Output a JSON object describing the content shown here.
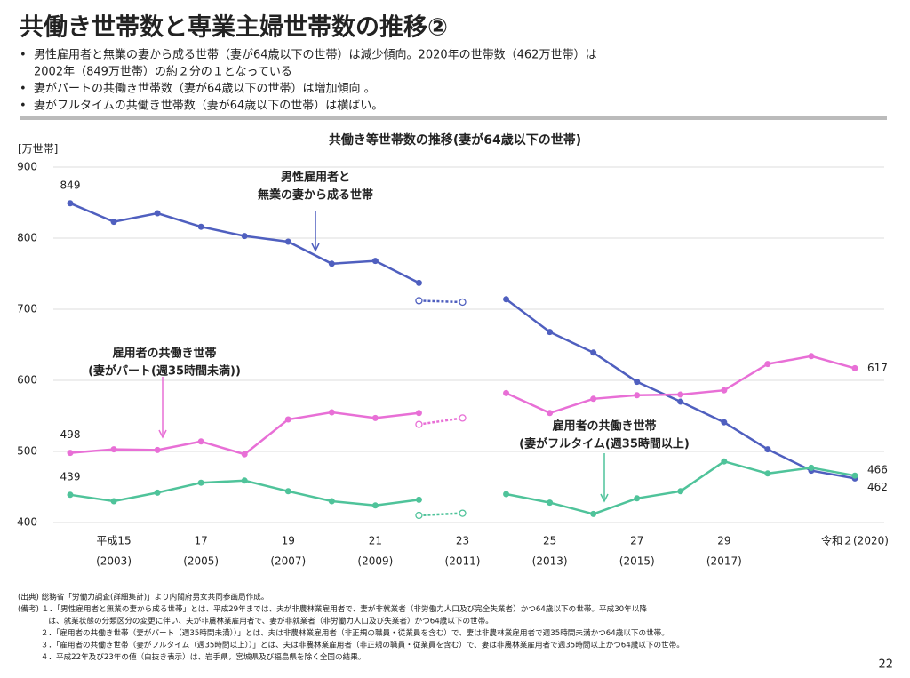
{
  "header": {
    "title": "共働き世帯数と専業主婦世帯数の推移②",
    "bullets": [
      [
        "男性雇用者と無業の妻から成る世帯（妻が64歳以下の世帯）は減少傾向。2020年の世帯数（462万世帯）は",
        "2002年（849万世帯）の約２分の１となっている"
      ],
      [
        "妻がパートの共働き世帯数（妻が64歳以下の世帯）は増加傾向 。"
      ],
      [
        "妻がフルタイムの共働き世帯数（妻が64歳以下の世帯）は横ばい。"
      ]
    ]
  },
  "chart_data": {
    "type": "line",
    "title": "共働き等世帯数の推移(妻が64歳以下の世帯)",
    "y_label": "[万世帯]",
    "categories": [
      null,
      "平成15",
      null,
      "17",
      null,
      "19",
      null,
      "21",
      null,
      "23",
      null,
      "25",
      null,
      "27",
      null,
      "29",
      null,
      null,
      "令和２"
    ],
    "category_years": [
      null,
      "(2003)",
      null,
      "(2005)",
      null,
      "(2007)",
      null,
      "(2009)",
      null,
      "(2011)",
      null,
      "(2013)",
      null,
      "(2015)",
      null,
      "(2017)",
      null,
      null,
      "(2020)"
    ],
    "ylim": [
      400,
      900
    ],
    "yticks": [
      400,
      500,
      600,
      700,
      800,
      900
    ],
    "grid": true,
    "series": [
      {
        "name": [
          "男性雇用者と",
          "無業の妻から成る世帯"
        ],
        "color": "#4f5fbf",
        "values": [
          849,
          823,
          835,
          816,
          803,
          795,
          764,
          768,
          737,
          null,
          714,
          668,
          639,
          598,
          570,
          541,
          503,
          473,
          462
        ],
        "hollow_values": [
          null,
          null,
          null,
          null,
          null,
          null,
          null,
          null,
          712,
          710,
          null,
          null,
          null,
          null,
          null,
          null,
          null,
          null,
          null
        ]
      },
      {
        "name": [
          "雇用者の共働き世帯",
          "(妻がパート(週35時間未満))"
        ],
        "color": "#e86fd6",
        "values": [
          498,
          503,
          502,
          514,
          496,
          545,
          555,
          547,
          554,
          null,
          582,
          554,
          574,
          579,
          580,
          586,
          623,
          634,
          617
        ],
        "hollow_values": [
          null,
          null,
          null,
          null,
          null,
          null,
          null,
          null,
          538,
          547,
          null,
          null,
          null,
          null,
          null,
          null,
          null,
          null,
          null
        ]
      },
      {
        "name": [
          "雇用者の共働き世帯",
          "(妻がフルタイム(週35時間以上)"
        ],
        "color": "#4fc39a",
        "values": [
          439,
          430,
          442,
          456,
          459,
          444,
          430,
          424,
          432,
          null,
          440,
          428,
          412,
          434,
          444,
          486,
          469,
          477,
          466
        ],
        "hollow_values": [
          null,
          null,
          null,
          null,
          null,
          null,
          null,
          null,
          410,
          413,
          null,
          null,
          null,
          null,
          null,
          null,
          null,
          null,
          null
        ]
      }
    ]
  },
  "notes": [
    "(出典) 総務省「労働力調査(詳細集計)」より内閣府男女共同参画局作成。",
    "(備考) １．「男性雇用者と無業の妻から成る世帯」とは、平成29年までは、夫が非農林業雇用者で、妻が非就業者（非労働力人口及び完全失業者）かつ64歳以下の世帯。平成30年以降",
    "　　　　は、就業状態の分類区分の変更に伴い、夫が非農林業雇用者で、妻が非就業者（非労働力人口及び失業者）かつ64歳以下の世帯。",
    "　　　２．「雇用者の共働き世帯（妻がパート（週35時間未満））」とは、夫は非農林業雇用者（非正規の職員・従業員を含む）で、妻は非農林業雇用者で週35時間未満かつ64歳以下の世帯。",
    "　　　３．「雇用者の共働き世帯（妻がフルタイム（週35時間以上））」とは、夫は非農林業雇用者（非正規の職員・従業員を含む）で、妻は非農林業雇用者で週35時間以上かつ64歳以下の世帯。",
    "　　　４．平成22年及び23年の値（白抜き表示）は、岩手県，宮城県及び福島県を除く全国の結果。"
  ],
  "page_number": "22"
}
